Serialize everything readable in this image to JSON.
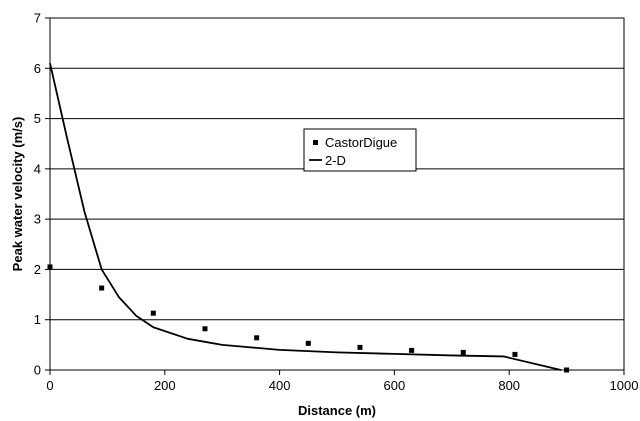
{
  "chart_data": {
    "type": "line",
    "title": "",
    "xlabel": "Distance (m)",
    "ylabel": "Peak water velocity (m/s)",
    "xlim": [
      0,
      1000
    ],
    "ylim": [
      0,
      7
    ],
    "x_ticks": [
      "0",
      "200",
      "400",
      "600",
      "800",
      "1000"
    ],
    "y_ticks": [
      "0",
      "1",
      "2",
      "3",
      "4",
      "5",
      "6",
      "7"
    ],
    "grid": "horizontal",
    "legend_position": "center",
    "series": [
      {
        "name": "CastorDigue",
        "style": "markers",
        "color": "#000000",
        "x": [
          0,
          90,
          180,
          270,
          360,
          450,
          540,
          630,
          720,
          810,
          900
        ],
        "y": [
          2.05,
          1.63,
          1.13,
          0.82,
          0.64,
          0.53,
          0.45,
          0.39,
          0.35,
          0.31,
          0.0
        ]
      },
      {
        "name": "2-D",
        "style": "line",
        "color": "#000000",
        "x": [
          0,
          30,
          60,
          90,
          120,
          150,
          180,
          240,
          300,
          400,
          500,
          600,
          700,
          790,
          890
        ],
        "y": [
          6.1,
          4.6,
          3.15,
          2.0,
          1.45,
          1.08,
          0.85,
          0.62,
          0.5,
          0.4,
          0.35,
          0.32,
          0.29,
          0.27,
          0.0
        ]
      }
    ]
  }
}
